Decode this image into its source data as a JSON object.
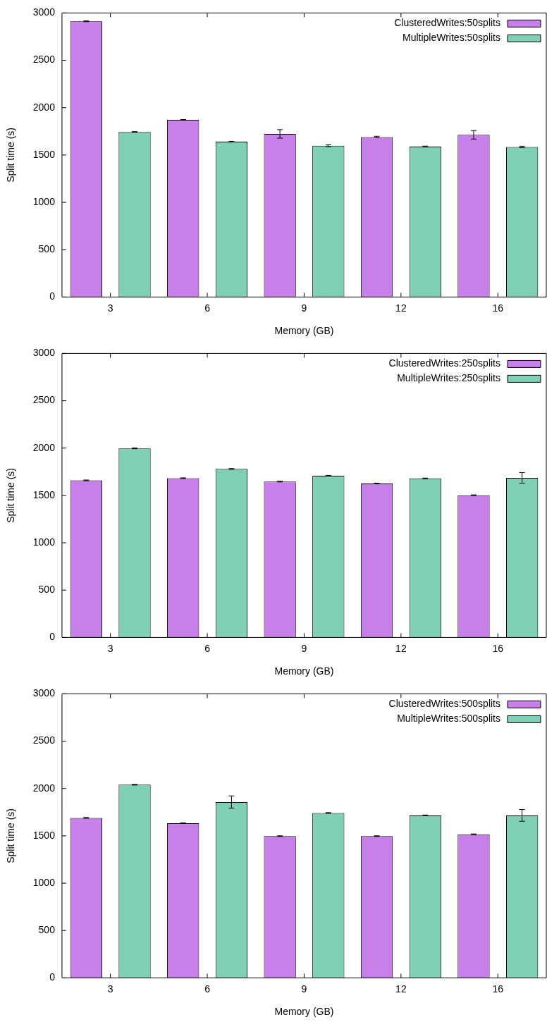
{
  "chart_data": [
    {
      "type": "bar",
      "xlabel": "Memory (GB)",
      "ylabel": "Split time (s)",
      "categories": [
        "3",
        "6",
        "9",
        "12",
        "16"
      ],
      "ylim": [
        0,
        3000
      ],
      "yticks": [
        0,
        500,
        1000,
        1500,
        2000,
        2500,
        3000
      ],
      "grid": false,
      "legend": "top right",
      "series": [
        {
          "name": "ClusteredWrites:50splits",
          "color": "#c87fe9",
          "values": [
            2912,
            1871,
            1723,
            1690,
            1713
          ],
          "errors": [
            4,
            4,
            45,
            8,
            45
          ]
        },
        {
          "name": "MultipleWrites:50splits",
          "color": "#80d0b8",
          "values": [
            1743,
            1641,
            1598,
            1589,
            1585
          ],
          "errors": [
            4,
            4,
            10,
            5,
            8
          ]
        }
      ]
    },
    {
      "type": "bar",
      "xlabel": "Memory (GB)",
      "ylabel": "Split time (s)",
      "categories": [
        "3",
        "6",
        "9",
        "12",
        "16"
      ],
      "ylim": [
        0,
        3000
      ],
      "yticks": [
        0,
        500,
        1000,
        1500,
        2000,
        2500,
        3000
      ],
      "grid": false,
      "legend": "top right",
      "series": [
        {
          "name": "ClusteredWrites:250splits",
          "color": "#c87fe9",
          "values": [
            1659,
            1682,
            1646,
            1626,
            1502
          ],
          "errors": [
            4,
            4,
            4,
            4,
            4
          ]
        },
        {
          "name": "MultipleWrites:250splits",
          "color": "#80d0b8",
          "values": [
            1997,
            1780,
            1708,
            1679,
            1685
          ],
          "errors": [
            4,
            4,
            4,
            4,
            56
          ]
        }
      ]
    },
    {
      "type": "bar",
      "xlabel": "Memory (GB)",
      "ylabel": "Split time (s)",
      "categories": [
        "3",
        "6",
        "9",
        "12",
        "16"
      ],
      "ylim": [
        0,
        3000
      ],
      "yticks": [
        0,
        500,
        1000,
        1500,
        2000,
        2500,
        3000
      ],
      "grid": false,
      "legend": "top right",
      "series": [
        {
          "name": "ClusteredWrites:500splits",
          "color": "#c87fe9",
          "values": [
            1690,
            1634,
            1497,
            1497,
            1516
          ],
          "errors": [
            4,
            4,
            4,
            4,
            4
          ]
        },
        {
          "name": "MultipleWrites:500splits",
          "color": "#80d0b8",
          "values": [
            2040,
            1857,
            1742,
            1716,
            1716
          ],
          "errors": [
            4,
            65,
            4,
            4,
            62
          ]
        }
      ]
    }
  ]
}
